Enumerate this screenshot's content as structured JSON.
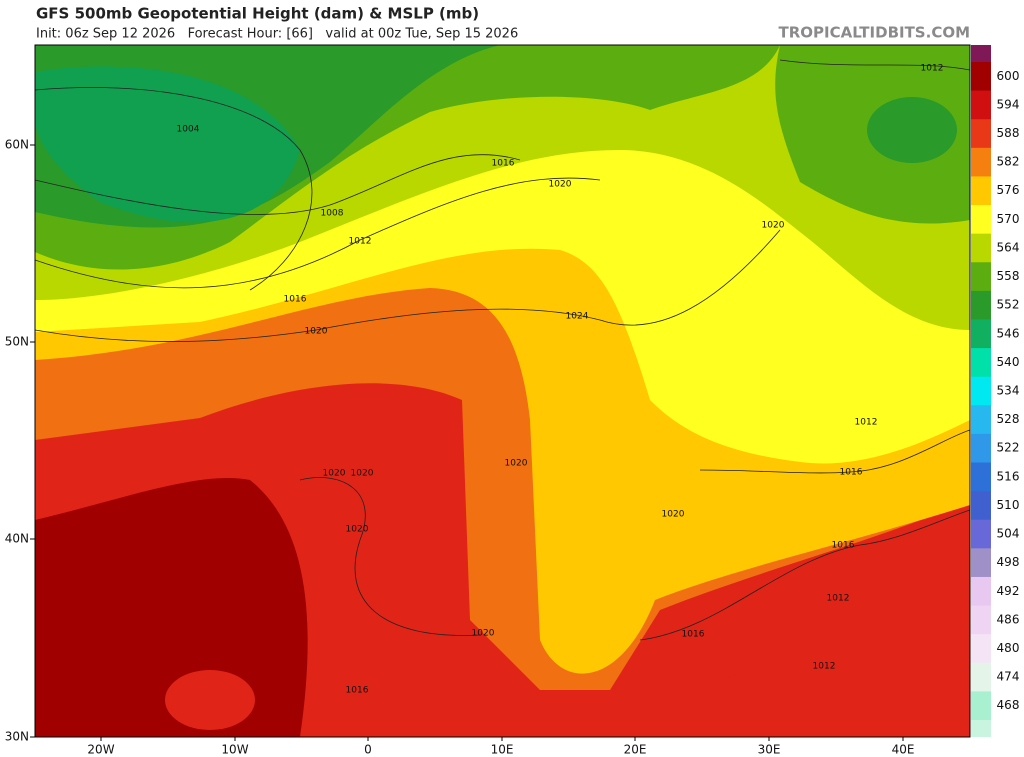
{
  "header": {
    "title": "GFS 500mb Geopotential Height (dam) & MSLP (mb)",
    "subtitle": "Init: 06z Sep 12 2026   Forecast Hour: [66]   valid at 00z Tue, Sep 15 2026",
    "watermark": "TROPICALTIDBITS.COM"
  },
  "axes": {
    "lat_labels": [
      "60N",
      "50N",
      "40N",
      "30N"
    ],
    "lon_labels": [
      "20W",
      "10W",
      "0",
      "10E",
      "20E",
      "30E",
      "40E"
    ]
  },
  "colorbar": {
    "ticks": [
      600,
      594,
      588,
      582,
      576,
      570,
      564,
      558,
      552,
      546,
      540,
      534,
      528,
      522,
      516,
      510,
      504,
      498,
      492,
      486,
      480,
      474,
      468
    ],
    "colors": [
      "#a00000",
      "#d01010",
      "#e83818",
      "#f58010",
      "#ffc800",
      "#ffff20",
      "#b8d800",
      "#5cae10",
      "#2a9a2a",
      "#10b060",
      "#00e0a8",
      "#00e8f0",
      "#28b8f0",
      "#3098e8",
      "#2c70d8",
      "#4060d0",
      "#6868d8",
      "#a090c8",
      "#e8c8f0",
      "#f0d4f4",
      "#f4e4f6",
      "#e4f4e8",
      "#a8f0d0"
    ],
    "over_color": "#801858",
    "under_color": "#c8f4e0"
  },
  "isobar_labels": [
    "1004",
    "1008",
    "1012",
    "1016",
    "1020",
    "1016",
    "1020",
    "1024",
    "1020",
    "1012",
    "1012",
    "1016",
    "1016",
    "1020",
    "1020",
    "1020",
    "1020",
    "1020",
    "1020",
    "1012",
    "1016",
    "1012",
    "1016"
  ]
}
